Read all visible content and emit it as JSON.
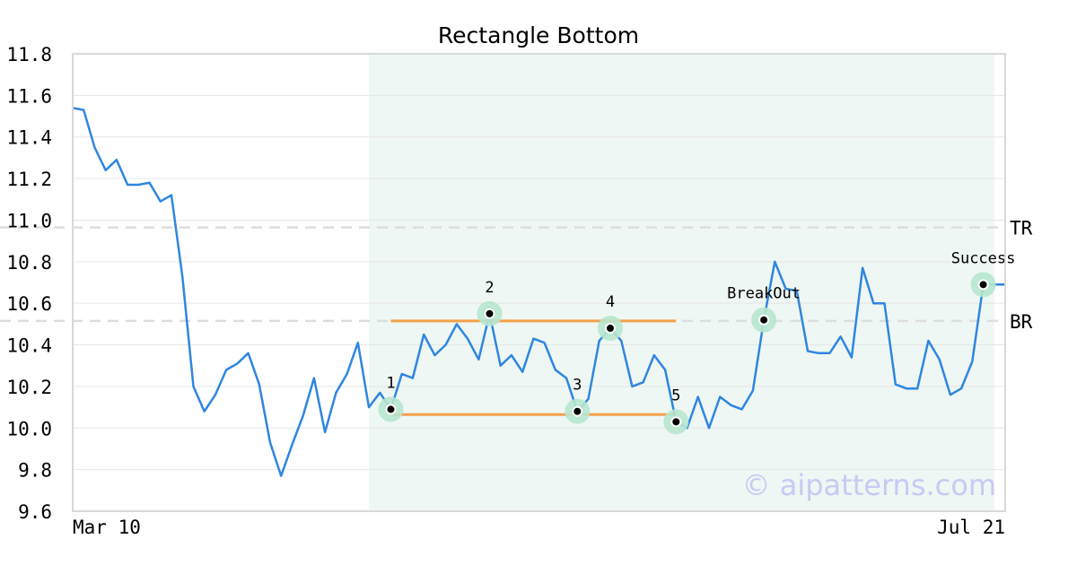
{
  "chart_data": {
    "type": "line",
    "title": "Rectangle Bottom",
    "xlabel": "",
    "ylabel": "",
    "ylim": [
      9.6,
      11.8
    ],
    "y_ticks": [
      "11.8",
      "11.6",
      "11.4",
      "11.2",
      "11.0",
      "10.8",
      "10.6",
      "10.4",
      "10.2",
      "10.0",
      "9.8",
      "9.6"
    ],
    "x_tick_labels": [
      "Mar 10",
      "Jul 21"
    ],
    "grid": "horizontal",
    "series": [
      {
        "values": [
          11.54,
          11.53,
          11.35,
          11.24,
          11.29,
          11.17,
          11.17,
          11.18,
          11.09,
          11.12,
          10.73,
          10.2,
          10.08,
          10.16,
          10.28,
          10.31,
          10.36,
          10.21,
          9.93,
          9.77,
          9.92,
          10.06,
          10.24,
          9.98,
          10.17,
          10.26,
          10.41,
          10.1,
          10.17,
          10.09,
          10.26,
          10.24,
          10.45,
          10.35,
          10.4,
          10.5,
          10.43,
          10.33,
          10.55,
          10.3,
          10.35,
          10.27,
          10.43,
          10.41,
          10.28,
          10.24,
          10.08,
          10.14,
          10.42,
          10.48,
          10.42,
          10.2,
          10.22,
          10.35,
          10.28,
          10.03,
          10.0,
          10.15,
          10.0,
          10.15,
          10.11,
          10.09,
          10.18,
          10.52,
          10.8,
          10.67,
          10.66,
          10.37,
          10.36,
          10.36,
          10.44,
          10.34,
          10.77,
          10.6,
          10.6,
          10.21,
          10.19,
          10.19,
          10.42,
          10.33,
          10.16,
          10.19,
          10.32,
          10.69,
          10.69,
          10.69
        ],
        "color": "#2f86e0"
      }
    ],
    "highlight_range": [
      27,
      84
    ],
    "levels": [
      {
        "label": "TR",
        "value": 10.965
      },
      {
        "label": "BR",
        "value": 10.515
      }
    ],
    "rectangle": {
      "top": 10.515,
      "bottom": 10.065,
      "from": 29,
      "to": 55
    },
    "points": [
      {
        "label": "1",
        "index": 29,
        "value": 10.09
      },
      {
        "label": "2",
        "index": 38,
        "value": 10.55
      },
      {
        "label": "3",
        "index": 46,
        "value": 10.08
      },
      {
        "label": "4",
        "index": 49,
        "value": 10.48
      },
      {
        "label": "5",
        "index": 55,
        "value": 10.03
      },
      {
        "label": "BreakOut",
        "index": 63,
        "value": 10.52
      },
      {
        "label": "Success",
        "index": 83,
        "value": 10.69
      }
    ],
    "colors": {
      "line": "#2f86e0",
      "shade": "#eef7f3",
      "rect_lines": "#f4a04a",
      "marker_ring": "#b7e6cf",
      "level_lines": "#dddddd",
      "grid": "#e6e6e6",
      "axes": "#d8d8d8"
    }
  },
  "watermark": "© aipatterns.com"
}
